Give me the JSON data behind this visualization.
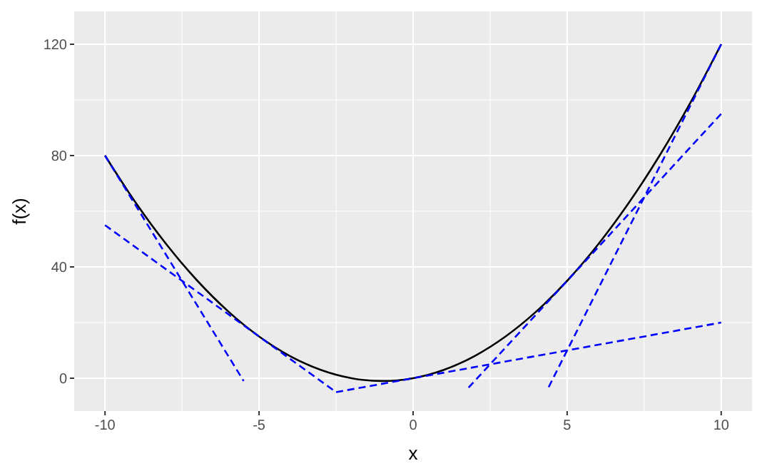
{
  "chart_data": {
    "type": "line",
    "xlabel": "x",
    "ylabel": "f(x)",
    "xlim": [
      -11,
      11
    ],
    "ylim": [
      -11.8,
      131.8
    ],
    "xticks": [
      -10,
      -5,
      0,
      5,
      10
    ],
    "yticks": [
      0,
      40,
      80,
      120
    ],
    "grid": true,
    "marker": "none",
    "series": [
      {
        "color": "#000000",
        "line_style": "solid",
        "x": [
          -10,
          -9,
          -8,
          -7,
          -6,
          -5,
          -4,
          -3,
          -2,
          -1,
          0,
          1,
          2,
          3,
          4,
          5,
          6,
          7,
          8,
          9,
          10
        ],
        "values": [
          80,
          63,
          48,
          35,
          24,
          15,
          8,
          3,
          0,
          -1,
          0,
          3,
          8,
          15,
          24,
          35,
          48,
          63,
          80,
          99,
          120
        ]
      },
      {
        "color": "#0000ff",
        "line_style": "dashed",
        "x": [
          -10,
          -5.5
        ],
        "values": [
          80,
          -1
        ]
      },
      {
        "color": "#0000ff",
        "line_style": "dashed",
        "x": [
          -10,
          -2.5
        ],
        "values": [
          55,
          -5
        ]
      },
      {
        "color": "#0000ff",
        "line_style": "dashed",
        "x": [
          -2.5,
          10
        ],
        "values": [
          -5,
          20
        ]
      },
      {
        "color": "#0000ff",
        "line_style": "dashed",
        "x": [
          1.8,
          10
        ],
        "values": [
          -3.4,
          95
        ]
      },
      {
        "color": "#0000ff",
        "line_style": "dashed",
        "x": [
          4.4,
          10
        ],
        "values": [
          -3.2,
          120
        ]
      }
    ]
  }
}
